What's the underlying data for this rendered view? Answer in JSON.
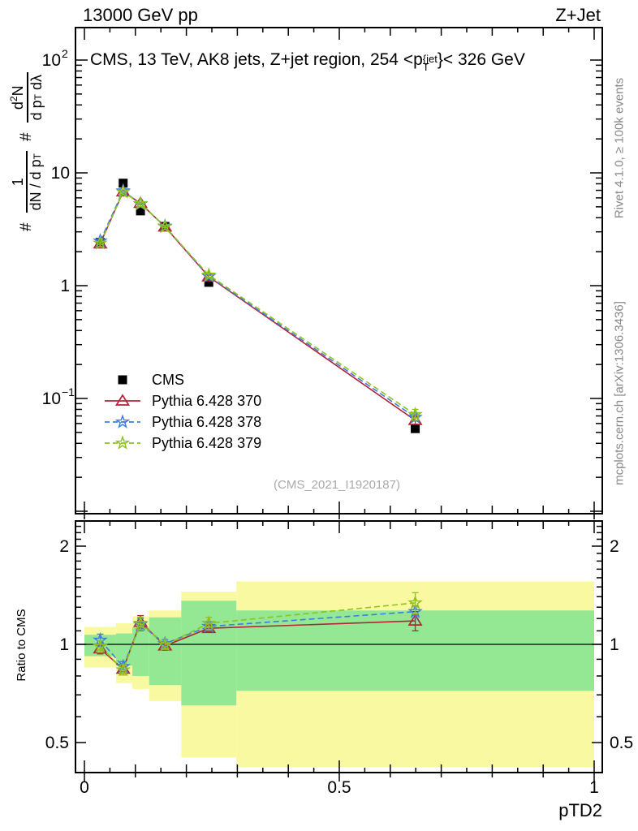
{
  "header": {
    "left": "13000 GeV pp",
    "right": "Z+Jet"
  },
  "title": {
    "pre": "CMS, 13 TeV, AK8 jets, Z+jet region, 254 <p",
    "sup": "{jet",
    "sub": "T",
    "post": "}< 326 GeV"
  },
  "ylabel": {
    "hash1": "#",
    "frac1_num": "1",
    "frac1_den": "dN / d p",
    "frac1_den_sub": "T",
    "hash2": "#",
    "frac2_num_pre": "d",
    "frac2_num_exp": "2",
    "frac2_num_post": "N",
    "frac2_den": "d p",
    "frac2_den_sub": "T",
    "frac2_den_post": " dλ"
  },
  "side_labels": {
    "top": "Rivet 4.1.0, ≥ 100k events",
    "bottom": "mcplots.cern.ch [arXiv:1306.3436]"
  },
  "watermark": "(CMS_2021_I1920187)",
  "ratio_label": "Ratio to CMS",
  "xaxis_title": "pTD2",
  "chart_data": {
    "type": "line",
    "title": "CMS, 13 TeV, AK8 jets, Z+jet region, 254 <pT^{jet}< 326 GeV",
    "xlabel": "pTD2",
    "ylabel": "# 1/(dN/dpT) # d2N/(dpT dLambda)",
    "ratio_ylabel": "Ratio to CMS",
    "x": [
      0.031,
      0.076,
      0.11,
      0.158,
      0.244,
      0.649
    ],
    "series": [
      {
        "name": "CMS",
        "marker": "square",
        "color": "#000000",
        "line": null,
        "values": [
          2.42,
          8.1,
          4.6,
          3.35,
          1.07,
          0.054
        ],
        "errors": [
          0.06,
          0.18,
          0.12,
          0.08,
          0.035,
          0.004
        ]
      },
      {
        "name": "Pythia 6.428 370",
        "marker": "triangle",
        "color": "#b22438",
        "line": "solid",
        "values": [
          2.35,
          6.8,
          5.38,
          3.32,
          1.2,
          0.064
        ],
        "errors": [
          0.05,
          0.12,
          0.1,
          0.07,
          0.04,
          0.005
        ],
        "ratio": [
          0.97,
          0.84,
          1.17,
          0.99,
          1.12,
          1.18
        ],
        "ratio_errors": [
          0.035,
          0.025,
          0.055,
          0.03,
          0.025,
          0.08
        ]
      },
      {
        "name": "Pythia 6.428 378",
        "marker": "star",
        "color": "#3d7de0",
        "line": "dashed",
        "values": [
          2.49,
          6.93,
          5.29,
          3.37,
          1.21,
          0.068
        ],
        "errors": [
          0.05,
          0.12,
          0.1,
          0.07,
          0.04,
          0.005
        ],
        "ratio": [
          1.03,
          0.855,
          1.15,
          1.005,
          1.135,
          1.26
        ],
        "ratio_errors": [
          0.045,
          0.03,
          0.05,
          0.03,
          0.035,
          0.055
        ]
      },
      {
        "name": "Pythia 6.428 379",
        "marker": "star",
        "color": "#8fc31b",
        "line": "dashed",
        "values": [
          2.38,
          6.77,
          5.34,
          3.33,
          1.24,
          0.072
        ],
        "errors": [
          0.05,
          0.12,
          0.1,
          0.07,
          0.05,
          0.008
        ],
        "ratio": [
          0.985,
          0.835,
          1.16,
          0.995,
          1.16,
          1.34
        ],
        "ratio_errors": [
          0.04,
          0.03,
          0.05,
          0.03,
          0.05,
          0.1
        ]
      }
    ],
    "x_axis": {
      "ticks": [
        0,
        0.5,
        1
      ],
      "tick_labels": [
        "0",
        "0.5",
        "1"
      ],
      "minor_step": 0.05,
      "mid_step": 0.1,
      "range": [
        -0.018,
        1.016
      ]
    },
    "y_axis": {
      "scale": "log",
      "range": [
        0.0095,
        182
      ],
      "tick_labels": [
        {
          "v": 100,
          "base": "10",
          "exp": "2"
        },
        {
          "v": 10,
          "base": "10",
          "exp": ""
        },
        {
          "v": 1,
          "base": "1",
          "exp": ""
        },
        {
          "v": 0.1,
          "base": "10",
          "exp": "−1"
        }
      ]
    },
    "ratio_axis": {
      "scale": "log",
      "range": [
        0.41,
        2.38
      ],
      "ticks": [
        2,
        1,
        0.5
      ],
      "tick_labels": [
        "2",
        "1",
        "0.5"
      ],
      "baseline": 1
    },
    "bands": {
      "bins": [
        [
          0,
          0.062
        ],
        [
          0.062,
          0.094
        ],
        [
          0.094,
          0.127
        ],
        [
          0.127,
          0.19
        ],
        [
          0.19,
          0.298
        ],
        [
          0.298,
          1.0
        ]
      ],
      "yellow": [
        [
          0.85,
          1.13
        ],
        [
          0.76,
          1.16
        ],
        [
          0.73,
          1.22
        ],
        [
          0.67,
          1.27
        ],
        [
          0.45,
          1.45
        ],
        [
          0.42,
          1.56
        ]
      ],
      "green": [
        [
          0.92,
          1.07
        ],
        [
          0.86,
          1.08
        ],
        [
          0.8,
          1.13
        ],
        [
          0.75,
          1.21
        ],
        [
          0.65,
          1.36
        ],
        [
          0.72,
          1.27
        ]
      ],
      "colors": {
        "yellow": "#f9f9a2",
        "green": "#94e894"
      }
    },
    "legend_position": "middle-left",
    "grid": false
  }
}
